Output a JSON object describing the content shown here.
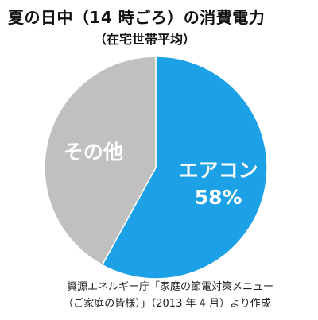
{
  "title": "夏の日中（14 時ごろ）の消費電力",
  "subtitle": "（在宅世帯平均）",
  "source_line1": "資源エネルギー庁「家庭の節電対策メニュー",
  "source_line2": "（ご家庭の皆様）」（2013 年 4 月）より作成",
  "chart_data": {
    "type": "pie",
    "title": "夏の日中（14 時ごろ）の消費電力",
    "subtitle": "（在宅世帯平均）",
    "start_angle_deg": 0,
    "direction": "clockwise",
    "slices": [
      {
        "name": "エアコン",
        "value": 58,
        "value_label": "58%",
        "color": "#1da1e6"
      },
      {
        "name": "その他",
        "value": 42,
        "value_label": "",
        "color": "#c0c0c0"
      }
    ]
  }
}
